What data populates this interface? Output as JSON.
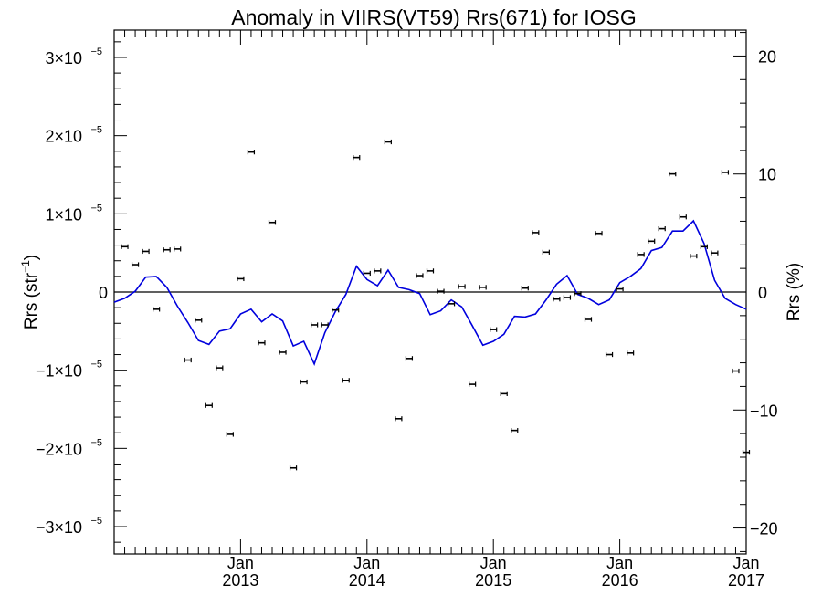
{
  "chart_data": {
    "type": "scatter",
    "title": "Anomaly in VIIRS(VT59) Rrs(671) for IOSG",
    "ylabel_left": "Rrs (str",
    "ylabel_left_sup": "−1",
    "ylabel_left_tail": ")",
    "ylabel_right": "Rrs (%)",
    "xlim": [
      "2012-01",
      "2017-01"
    ],
    "ylim_left": [
      -3.35e-05,
      3.35e-05
    ],
    "ylim_right": [
      -22.2,
      22.2
    ],
    "x_ticks": [
      {
        "month": "Jan",
        "year": "2013",
        "t": 2013.0
      },
      {
        "month": "Jan",
        "year": "2014",
        "t": 2014.0
      },
      {
        "month": "Jan",
        "year": "2015",
        "t": 2015.0
      },
      {
        "month": "Jan",
        "year": "2016",
        "t": 2016.0
      },
      {
        "month": "Jan",
        "year": "2017",
        "t": 2017.0
      }
    ],
    "y_ticks_left": [
      {
        "v": 3e-05,
        "mant": "3×10",
        "exp": "−5"
      },
      {
        "v": 2e-05,
        "mant": "2×10",
        "exp": "−5"
      },
      {
        "v": 1e-05,
        "mant": "1×10",
        "exp": "−5"
      },
      {
        "v": 0,
        "mant": "0",
        "exp": ""
      },
      {
        "v": -1e-05,
        "mant": "−1×10",
        "exp": "−5"
      },
      {
        "v": -2e-05,
        "mant": "−2×10",
        "exp": "−5"
      },
      {
        "v": -3e-05,
        "mant": "−3×10",
        "exp": "−5"
      }
    ],
    "y_ticks_right": [
      {
        "v": 20,
        "label": "20"
      },
      {
        "v": 10,
        "label": "10"
      },
      {
        "v": 0,
        "label": "0"
      },
      {
        "v": -10,
        "label": "−10"
      },
      {
        "v": -20,
        "label": "−20"
      }
    ],
    "series": [
      {
        "kind": "points",
        "color": "#000000",
        "x": [
          "2012-01",
          "2012-02",
          "2012-03",
          "2012-04",
          "2012-05",
          "2012-06",
          "2012-07",
          "2012-08",
          "2012-09",
          "2012-10",
          "2012-11",
          "2012-12",
          "2013-01",
          "2013-02",
          "2013-03",
          "2013-04",
          "2013-05",
          "2013-06",
          "2013-07",
          "2013-08",
          "2013-09",
          "2013-10",
          "2013-11",
          "2013-12",
          "2014-01",
          "2014-02",
          "2014-03",
          "2014-04",
          "2014-05",
          "2014-06",
          "2014-07",
          "2014-08",
          "2014-09",
          "2014-10",
          "2014-11",
          "2014-12",
          "2015-01",
          "2015-02",
          "2015-03",
          "2015-04",
          "2015-05",
          "2015-06",
          "2015-07",
          "2015-08",
          "2015-09",
          "2015-10",
          "2015-11",
          "2015-12",
          "2016-01",
          "2016-02",
          "2016-03",
          "2016-04",
          "2016-05",
          "2016-06",
          "2016-07",
          "2016-08",
          "2016-09",
          "2016-10",
          "2016-11",
          "2016-12",
          "2017-01"
        ],
        "y": [
          null,
          5.8e-06,
          3.5e-06,
          5.2e-06,
          -2.2e-06,
          5.4e-06,
          5.5e-06,
          -8.7e-06,
          -3.6e-06,
          -1.45e-05,
          -9.7e-06,
          -1.82e-05,
          1.7e-06,
          1.79e-05,
          -6.5e-06,
          8.9e-06,
          -7.7e-06,
          -2.25e-05,
          -1.15e-05,
          -4.2e-06,
          -4.2e-06,
          -2.3e-06,
          -1.13e-05,
          1.72e-05,
          2.4e-06,
          2.7e-06,
          1.92e-05,
          -1.62e-05,
          -8.5e-06,
          2.1e-06,
          2.7e-06,
          1e-07,
          -1.5e-06,
          7e-07,
          -1.18e-05,
          6e-07,
          -4.8e-06,
          -1.3e-05,
          -1.77e-05,
          5e-07,
          7.6e-06,
          5.1e-06,
          -9e-07,
          -7e-07,
          -2e-07,
          -3.5e-06,
          7.5e-06,
          -8e-06,
          4e-07,
          -7.8e-06,
          4.8e-06,
          6.5e-06,
          8.1e-06,
          1.51e-05,
          9.6e-06,
          4.6e-06,
          5.8e-06,
          5e-06,
          1.53e-05,
          -1.01e-05,
          -2.05e-05
        ]
      },
      {
        "kind": "line",
        "color": "#0000dd",
        "x": [
          "2012-01",
          "2012-02",
          "2012-03",
          "2012-04",
          "2012-05",
          "2012-06",
          "2012-07",
          "2012-08",
          "2012-09",
          "2012-10",
          "2012-11",
          "2012-12",
          "2013-01",
          "2013-02",
          "2013-03",
          "2013-04",
          "2013-05",
          "2013-06",
          "2013-07",
          "2013-08",
          "2013-09",
          "2013-10",
          "2013-11",
          "2013-12",
          "2014-01",
          "2014-02",
          "2014-03",
          "2014-04",
          "2014-05",
          "2014-06",
          "2014-07",
          "2014-08",
          "2014-09",
          "2014-10",
          "2014-11",
          "2014-12",
          "2015-01",
          "2015-02",
          "2015-03",
          "2015-04",
          "2015-05",
          "2015-06",
          "2015-07",
          "2015-08",
          "2015-09",
          "2015-10",
          "2015-11",
          "2015-12",
          "2016-01",
          "2016-02",
          "2016-03",
          "2016-04",
          "2016-05",
          "2016-06",
          "2016-07",
          "2016-08",
          "2016-09",
          "2016-10",
          "2016-11",
          "2016-12",
          "2017-01"
        ],
        "y": [
          -1.3e-06,
          -8e-07,
          1e-07,
          1.9e-06,
          2e-06,
          6e-07,
          -1.8e-06,
          -3.9e-06,
          -6.2e-06,
          -6.7e-06,
          -5e-06,
          -4.7e-06,
          -2.8e-06,
          -2.2e-06,
          -3.8e-06,
          -2.8e-06,
          -3.7e-06,
          -6.9e-06,
          -6.3e-06,
          -9.2e-06,
          -5.2e-06,
          -2.5e-06,
          -3e-07,
          3.3e-06,
          1.6e-06,
          8e-07,
          2.8e-06,
          6e-07,
          3e-07,
          -2e-07,
          -2.9e-06,
          -2.4e-06,
          -1e-06,
          -1.9e-06,
          -4.3e-06,
          -6.8e-06,
          -6.3e-06,
          -5.4e-06,
          -3.1e-06,
          -3.2e-06,
          -2.8e-06,
          -1e-06,
          1e-06,
          2.1e-06,
          -3e-07,
          -8e-07,
          -1.6e-06,
          -1e-06,
          1.2e-06,
          2e-06,
          3e-06,
          5.3e-06,
          5.7e-06,
          7.8e-06,
          7.8e-06,
          9.1e-06,
          6.2e-06,
          1.5e-06,
          -8e-07,
          -1.6e-06,
          -2.2e-06
        ]
      }
    ]
  }
}
